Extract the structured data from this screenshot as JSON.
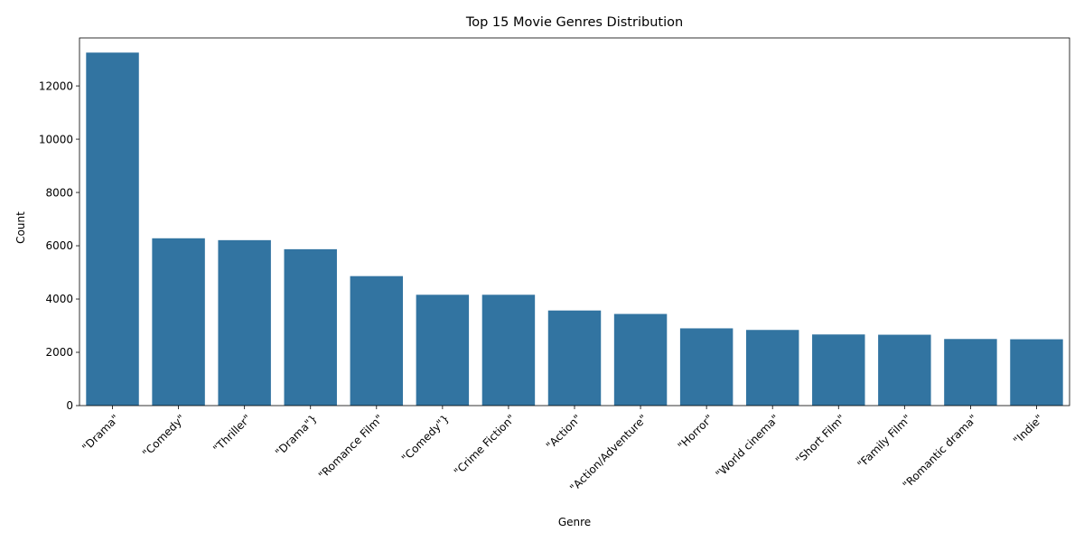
{
  "chart_data": {
    "type": "bar",
    "title": "Top 15 Movie Genres Distribution",
    "xlabel": "Genre",
    "ylabel": "Count",
    "categories": [
      "\"Drama\"",
      "\"Comedy\"",
      "\"Thriller\"",
      "\"Drama\"}",
      "\"Romance Film\"",
      "\"Comedy\"}",
      "\"Crime Fiction\"",
      "\"Action\"",
      "\"Action/Adventure\"",
      "\"Horror\"",
      "\"World cinema\"",
      "\"Short Film\"",
      "\"Family Film\"",
      "\"Romantic drama\"",
      "\"Indie\""
    ],
    "values": [
      13250,
      6280,
      6210,
      5870,
      4860,
      4160,
      4160,
      3570,
      3440,
      2900,
      2840,
      2670,
      2660,
      2500,
      2490
    ],
    "ylim": [
      0,
      13800
    ],
    "yticks": [
      0,
      2000,
      4000,
      6000,
      8000,
      10000,
      12000
    ],
    "grid": false,
    "legend": "none",
    "bar_color": "#3274a1",
    "x_tick_rotation": 45
  }
}
